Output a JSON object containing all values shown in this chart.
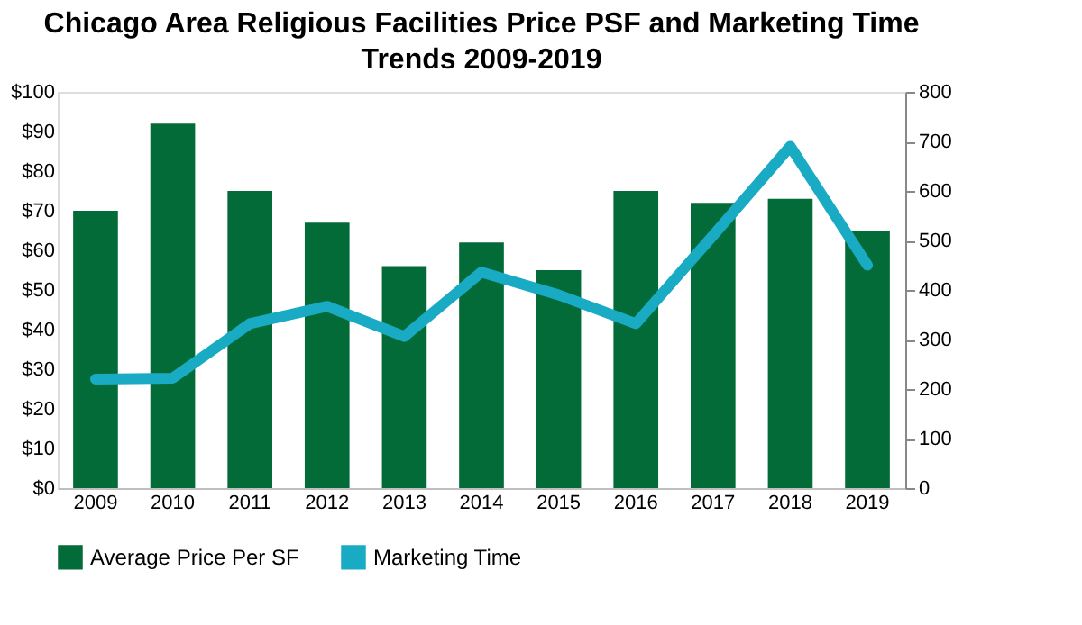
{
  "chart_data": {
    "type": "bar",
    "title": "Chicago Area Religious Facilities Price PSF and Marketing Time Trends 2009-2019",
    "categories": [
      "2009",
      "2010",
      "2011",
      "2012",
      "2013",
      "2014",
      "2015",
      "2016",
      "2017",
      "2018",
      "2019"
    ],
    "series": [
      {
        "name": "Average Price Per SF",
        "color": "#036b38",
        "values": [
          70,
          92,
          75,
          67,
          56,
          62,
          55,
          75,
          72,
          73,
          65
        ]
      },
      {
        "name": "Marketing Time",
        "type": "line",
        "axis": "y2",
        "color": "#1aabc4",
        "values": [
          220,
          222,
          332,
          367,
          306,
          436,
          390,
          332,
          510,
          690,
          450
        ]
      }
    ],
    "ylim": [
      0,
      100
    ],
    "yticks": [
      {
        "value": 0,
        "label": "$0"
      },
      {
        "value": 10,
        "label": "$10"
      },
      {
        "value": 20,
        "label": "$20"
      },
      {
        "value": 30,
        "label": "$30"
      },
      {
        "value": 40,
        "label": "$40"
      },
      {
        "value": 50,
        "label": "$50"
      },
      {
        "value": 60,
        "label": "$60"
      },
      {
        "value": 70,
        "label": "$70"
      },
      {
        "value": 80,
        "label": "$80"
      },
      {
        "value": 90,
        "label": "$90"
      },
      {
        "value": 100,
        "label": "$100"
      }
    ],
    "y2lim": [
      0,
      800
    ],
    "y2ticks": [
      0,
      100,
      200,
      300,
      400,
      500,
      600,
      700,
      800
    ],
    "grid": false,
    "legend": "bottom",
    "marker": "none",
    "line_style": "solid"
  }
}
